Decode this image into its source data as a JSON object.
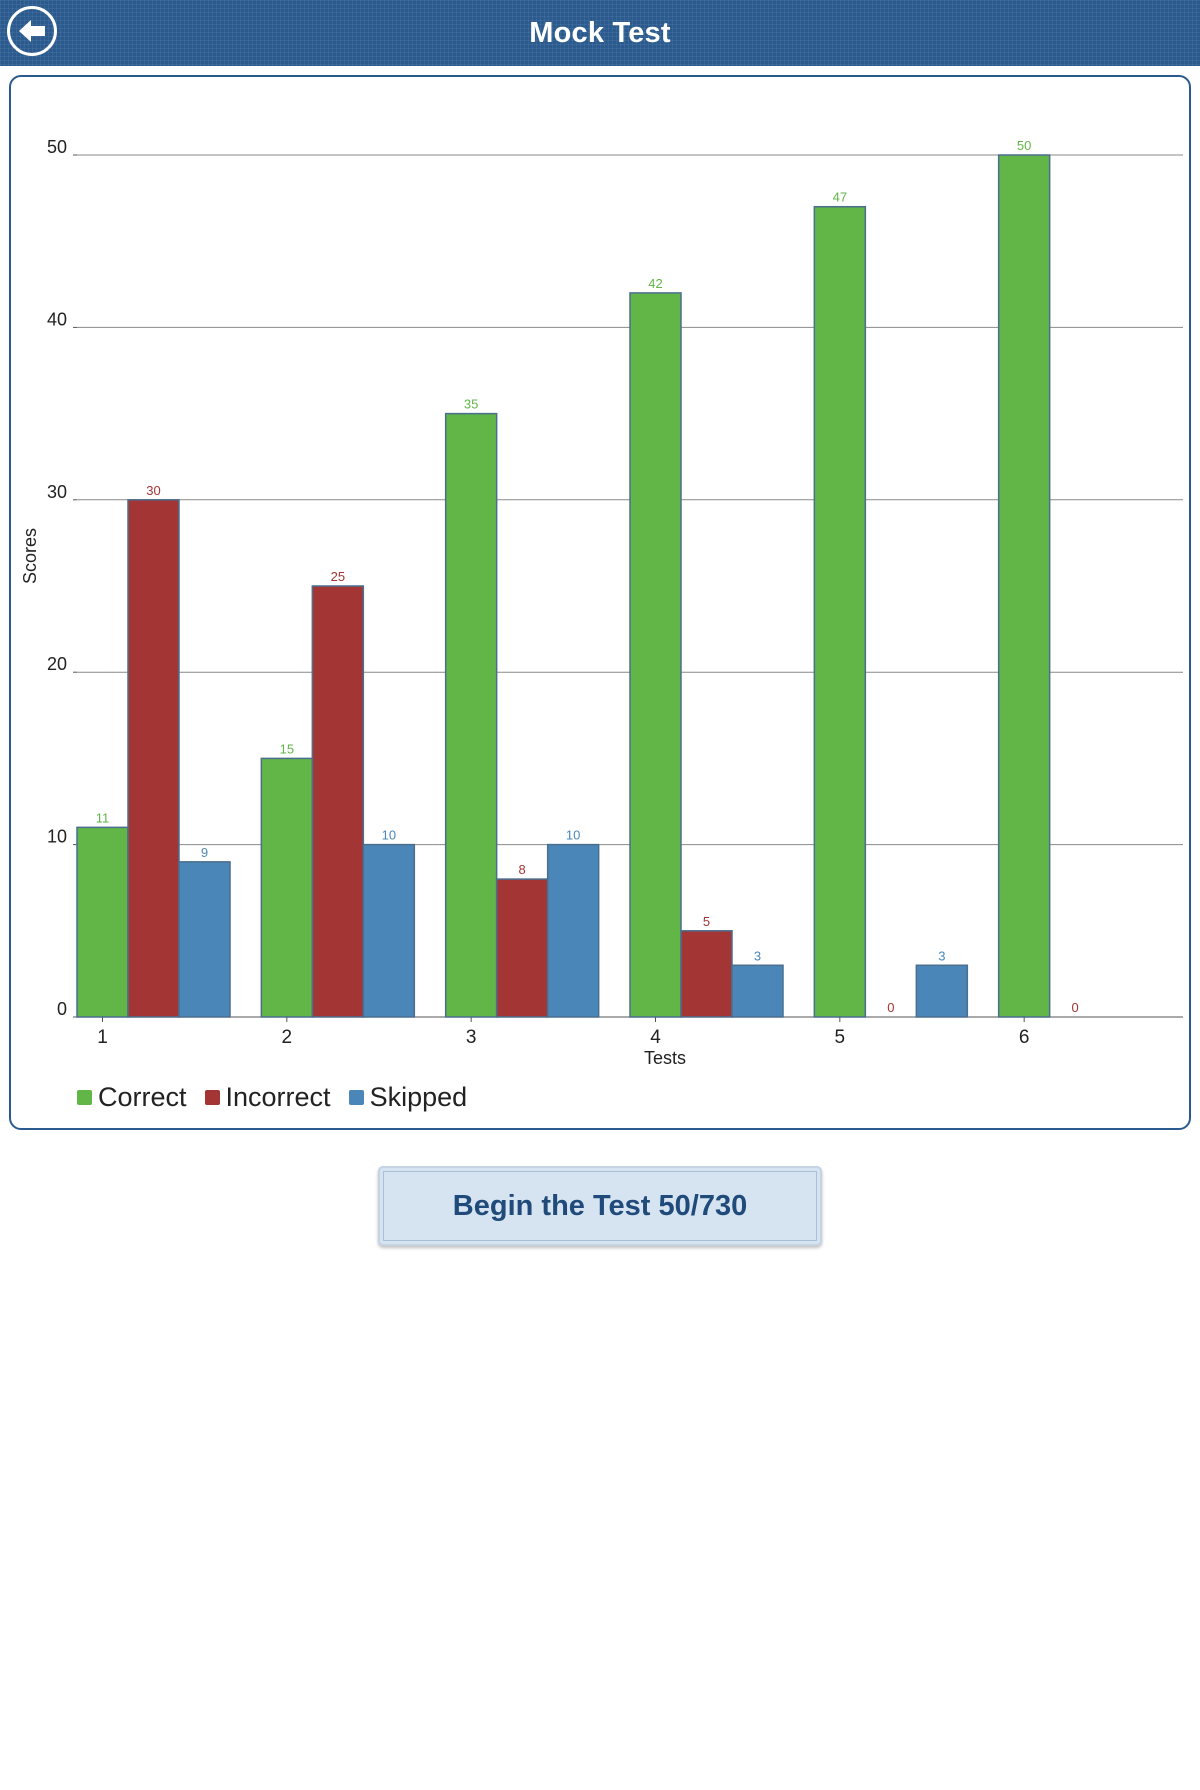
{
  "header": {
    "title": "Mock Test",
    "back_icon": "back-arrow-icon"
  },
  "colors": {
    "header_bg": "#2a5a8e",
    "correct": "#62b547",
    "incorrect": "#a33535",
    "skipped": "#4a87b8"
  },
  "chart_data": {
    "type": "bar",
    "title": "",
    "xlabel": "Tests",
    "ylabel": "Scores",
    "categories": [
      "1",
      "2",
      "3",
      "4",
      "5",
      "6"
    ],
    "series": [
      {
        "name": "Correct",
        "values": [
          11,
          15,
          35,
          42,
          47,
          50
        ],
        "color": "#62b547"
      },
      {
        "name": "Incorrect",
        "values": [
          30,
          25,
          8,
          5,
          0,
          0
        ],
        "color": "#a33535"
      },
      {
        "name": "Skipped",
        "values": [
          9,
          10,
          10,
          3,
          3,
          null
        ],
        "color": "#4a87b8"
      }
    ],
    "ylim": [
      0,
      50
    ],
    "yticks": [
      0,
      10,
      20,
      30,
      40,
      50
    ],
    "grid": true,
    "data_labels": true,
    "legend": "bottom-left"
  },
  "legend": {
    "items": [
      "Correct",
      "Incorrect",
      "Skipped"
    ]
  },
  "actions": {
    "begin_label": "Begin the Test 50/730"
  }
}
